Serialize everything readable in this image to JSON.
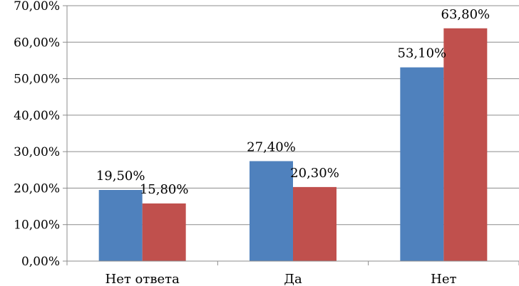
{
  "chart_data": {
    "type": "bar",
    "categories": [
      "Нет ответа",
      "Да",
      "Нет"
    ],
    "series": [
      {
        "values": [
          19.5,
          27.4,
          53.1
        ],
        "labels": [
          "19,50%",
          "27,40%",
          "53,10%"
        ],
        "color": "#4f81bd"
      },
      {
        "values": [
          15.8,
          20.3,
          63.8
        ],
        "labels": [
          "15,80%",
          "20,30%",
          "63,80%"
        ],
        "color": "#c0504d"
      }
    ],
    "ylim": [
      0,
      70
    ],
    "yticks": [
      0,
      10,
      20,
      30,
      40,
      50,
      60,
      70
    ],
    "ytick_labels": [
      "0,00%",
      "10,00%",
      "20,00%",
      "30,00%",
      "40,00%",
      "50,00%",
      "60,00%",
      "70,00%"
    ],
    "grid": true,
    "legend": false
  }
}
